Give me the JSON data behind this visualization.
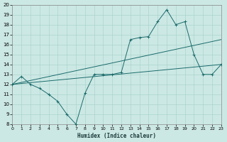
{
  "xlabel": "Humidex (Indice chaleur)",
  "bg_color": "#cce8e4",
  "grid_color": "#aad4ce",
  "line_color": "#1a6b6b",
  "xmin": 0,
  "xmax": 23,
  "ymin": 8,
  "ymax": 20,
  "yticks": [
    8,
    9,
    10,
    11,
    12,
    13,
    14,
    15,
    16,
    17,
    18,
    19,
    20
  ],
  "xticks": [
    0,
    1,
    2,
    3,
    4,
    5,
    6,
    7,
    8,
    9,
    10,
    11,
    12,
    13,
    14,
    15,
    16,
    17,
    18,
    19,
    20,
    21,
    22,
    23
  ],
  "series_main": {
    "x": [
      0,
      1,
      2,
      3,
      4,
      5,
      6,
      7,
      8,
      9,
      10,
      11,
      12,
      13,
      14,
      15,
      16,
      17,
      18,
      19,
      20,
      21,
      22,
      23
    ],
    "y": [
      12,
      12.8,
      12,
      11.6,
      11.0,
      10.3,
      9.0,
      8.0,
      11.1,
      13,
      13,
      13,
      13.2,
      16.5,
      16.7,
      16.8,
      18.3,
      19.5,
      18,
      18.3,
      15,
      13,
      13,
      14
    ]
  },
  "series_trend1": {
    "x": [
      0,
      23
    ],
    "y": [
      12,
      16.5
    ]
  },
  "series_trend2": {
    "x": [
      0,
      23
    ],
    "y": [
      12,
      14.0
    ]
  }
}
